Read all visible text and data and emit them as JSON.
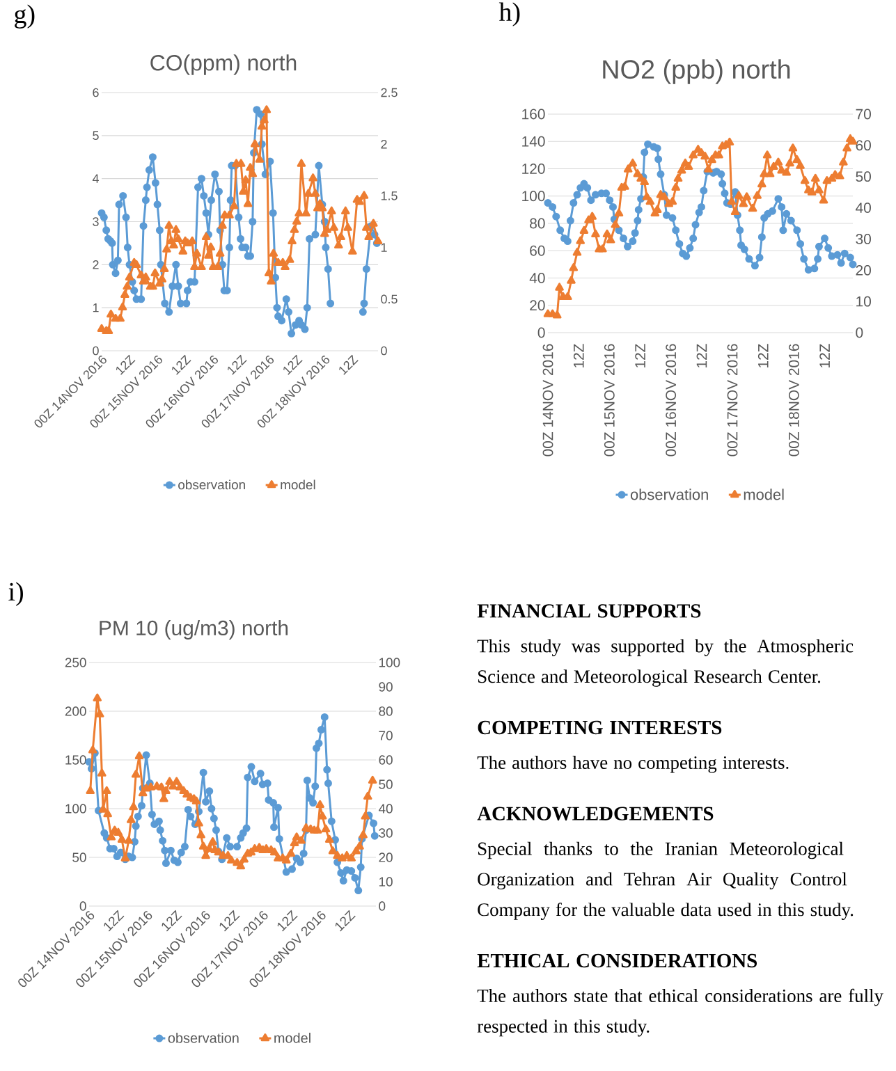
{
  "chart_data": [
    {
      "type": "line",
      "title": "CO(ppm) north",
      "annotations": [
        "g)"
      ],
      "xlim": [
        "2016-11-14T00:00",
        "2016-11-18T23:00"
      ],
      "xticks": [
        {
          "value": "2016-11-14T00:00",
          "label": "00Z 14NOV 2016"
        },
        {
          "value": "2016-11-14T12:00",
          "label": "12Z"
        },
        {
          "value": "2016-11-15T00:00",
          "label": "00Z 15NOV 2016"
        },
        {
          "value": "2016-11-15T12:00",
          "label": "12Z"
        },
        {
          "value": "2016-11-16T00:00",
          "label": "00Z 16NOV 2016"
        },
        {
          "value": "2016-11-16T12:00",
          "label": "12Z"
        },
        {
          "value": "2016-11-17T00:00",
          "label": "00Z 17NOV 2016"
        },
        {
          "value": "2016-11-17T12:00",
          "label": "12Z"
        },
        {
          "value": "2016-11-18T00:00",
          "label": "00Z 18NOV 2016"
        },
        {
          "value": "2016-11-18T12:00",
          "label": "12Z"
        }
      ],
      "ylim": [
        0,
        6
      ],
      "yticks": [
        0,
        1,
        2,
        3,
        4,
        5,
        6
      ],
      "y2lim": [
        0,
        2.5
      ],
      "y2ticks": [
        0,
        0.5,
        1,
        1.5,
        2,
        2.5
      ],
      "grid": "y",
      "legend": "bottom",
      "series": [
        {
          "name": "observation",
          "color": "#5b9bd5",
          "marker": "circle",
          "x": [
            "2016-11-14T00:00",
            "2016-11-14T01:00",
            "2016-11-14T02:00",
            "2016-11-14T02:48",
            "2016-11-14T03:48",
            "2016-11-14T04:30",
            "2016-11-14T04:48",
            "2016-11-14T06:00",
            "2016-11-14T07:00",
            "2016-11-14T07:30",
            "2016-11-14T09:12",
            "2016-11-14T10:30",
            "2016-11-14T11:12",
            "2016-11-14T12:00",
            "2016-11-14T13:12",
            "2016-11-14T14:00",
            "2016-11-14T15:00",
            "2016-11-14T17:00",
            "2016-11-14T18:00",
            "2016-11-14T19:00",
            "2016-11-14T19:30",
            "2016-11-14T20:30",
            "2016-11-14T22:00",
            "2016-11-14T23:12",
            "2016-11-15T00:00",
            "2016-11-15T01:00",
            "2016-11-15T01:30",
            "2016-11-15T03:12",
            "2016-11-15T05:00",
            "2016-11-15T06:30",
            "2016-11-15T08:00",
            "2016-11-15T09:00",
            "2016-11-15T10:00",
            "2016-11-15T12:30",
            "2016-11-15T13:00",
            "2016-11-15T14:12",
            "2016-11-15T16:00",
            "2016-11-15T17:30",
            "2016-11-15T19:00",
            "2016-11-15T20:00",
            "2016-11-15T21:00",
            "2016-11-15T22:00",
            "2016-11-15T23:12",
            "2016-11-16T00:48",
            "2016-11-16T02:30",
            "2016-11-16T03:00",
            "2016-11-16T04:00",
            "2016-11-16T04:48",
            "2016-11-16T06:00",
            "2016-11-16T07:00",
            "2016-11-16T07:30",
            "2016-11-16T08:00",
            "2016-11-16T09:30",
            "2016-11-16T11:00",
            "2016-11-16T11:48",
            "2016-11-16T12:30",
            "2016-11-16T14:00",
            "2016-11-16T15:00",
            "2016-11-16T16:00",
            "2016-11-16T17:00",
            "2016-11-16T17:30",
            "2016-11-16T18:48",
            "2016-11-16T20:30",
            "2016-11-16T21:00",
            "2016-11-16T22:30",
            "2016-11-17T00:30",
            "2016-11-17T01:48",
            "2016-11-17T02:48",
            "2016-11-17T03:30",
            "2016-11-17T04:00",
            "2016-11-17T05:30",
            "2016-11-17T07:30",
            "2016-11-17T08:30",
            "2016-11-17T09:42",
            "2016-11-17T11:30",
            "2016-11-17T13:00",
            "2016-11-17T14:00",
            "2016-11-17T15:30",
            "2016-11-17T16:30",
            "2016-11-17T17:30",
            "2016-11-17T20:00",
            "2016-11-17T21:30",
            "2016-11-17T23:00",
            "2016-11-18T00:00",
            "2016-11-18T00:30",
            "2016-11-18T01:30",
            "2016-11-18T02:30",
            "2016-11-18T10:00",
            "2016-11-18T16:30",
            "2016-11-18T17:00",
            "2016-11-18T18:00",
            "2016-11-18T20:00",
            "2016-11-18T21:30",
            "2016-11-18T22:30"
          ],
          "values": [
            3.2,
            3.1,
            2.8,
            2.6,
            2.55,
            2.5,
            2.0,
            1.8,
            2.1,
            3.4,
            3.6,
            3.1,
            2.4,
            2.0,
            1.6,
            1.4,
            1.2,
            1.2,
            2.9,
            3.5,
            3.8,
            4.2,
            4.5,
            3.9,
            3.4,
            2.8,
            2.0,
            1.1,
            0.9,
            1.5,
            2.0,
            1.5,
            1.1,
            1.1,
            1.4,
            1.6,
            1.6,
            3.8,
            4.0,
            3.6,
            3.2,
            2.7,
            3.5,
            4.1,
            3.7,
            2.8,
            2.0,
            1.4,
            1.4,
            2.4,
            3.5,
            4.3,
            4.3,
            3.1,
            2.6,
            2.4,
            2.4,
            2.2,
            2.2,
            3.0,
            4.6,
            5.6,
            5.5,
            4.8,
            4.1,
            4.4,
            3.2,
            1.7,
            1.0,
            0.8,
            0.7,
            1.2,
            0.9,
            0.4,
            0.6,
            0.7,
            0.6,
            0.5,
            1.0,
            2.6,
            2.7,
            4.3,
            3.4,
            3.0,
            2.4,
            1.9,
            1.1,
            null,
            0.9,
            1.1,
            1.9,
            2.9,
            2.7,
            2.5
          ]
        },
        {
          "name": "model",
          "color": "#ed7d31",
          "marker": "triangle",
          "axis": "y2",
          "x": [
            "2016-11-14T00:00",
            "2016-11-14T02:00",
            "2016-11-14T03:00",
            "2016-11-14T04:00",
            "2016-11-14T06:00",
            "2016-11-14T08:00",
            "2016-11-14T09:00",
            "2016-11-14T10:00",
            "2016-11-14T11:00",
            "2016-11-14T12:00",
            "2016-11-14T14:00",
            "2016-11-14T15:00",
            "2016-11-14T17:00",
            "2016-11-14T18:00",
            "2016-11-14T19:00",
            "2016-11-14T21:00",
            "2016-11-14T22:00",
            "2016-11-14T23:00",
            "2016-11-15T01:00",
            "2016-11-15T02:00",
            "2016-11-15T03:00",
            "2016-11-15T04:00",
            "2016-11-15T05:00",
            "2016-11-15T06:00",
            "2016-11-15T07:00",
            "2016-11-15T08:00",
            "2016-11-15T09:00",
            "2016-11-15T11:00",
            "2016-11-15T12:00",
            "2016-11-15T13:00",
            "2016-11-15T15:00",
            "2016-11-15T16:00",
            "2016-11-15T17:00",
            "2016-11-15T19:00",
            "2016-11-15T21:00",
            "2016-11-15T22:00",
            "2016-11-15T23:00",
            "2016-11-16T00:00",
            "2016-11-16T02:00",
            "2016-11-16T03:00",
            "2016-11-16T04:00",
            "2016-11-16T05:00",
            "2016-11-16T07:00",
            "2016-11-16T09:00",
            "2016-11-16T10:00",
            "2016-11-16T12:00",
            "2016-11-16T13:00",
            "2016-11-16T14:00",
            "2016-11-16T15:00",
            "2016-11-16T16:00",
            "2016-11-16T17:00",
            "2016-11-16T18:00",
            "2016-11-16T20:00",
            "2016-11-16T21:00",
            "2016-11-16T22:00",
            "2016-11-16T23:00",
            "2016-11-17T00:00",
            "2016-11-17T01:00",
            "2016-11-17T02:00",
            "2016-11-17T04:00",
            "2016-11-17T06:00",
            "2016-11-17T07:00",
            "2016-11-17T09:00",
            "2016-11-17T10:00",
            "2016-11-17T11:00",
            "2016-11-17T12:00",
            "2016-11-17T13:00",
            "2016-11-17T14:00",
            "2016-11-17T16:00",
            "2016-11-17T17:00",
            "2016-11-17T19:00",
            "2016-11-17T20:00",
            "2016-11-17T21:00",
            "2016-11-17T22:00",
            "2016-11-17T23:00",
            "2016-11-18T00:00",
            "2016-11-18T01:00",
            "2016-11-18T03:00",
            "2016-11-18T04:00",
            "2016-11-18T06:00",
            "2016-11-18T07:00",
            "2016-11-18T09:00",
            "2016-11-18T10:00",
            "2016-11-18T12:00",
            "2016-11-18T14:00",
            "2016-11-18T15:00",
            "2016-11-18T17:00",
            "2016-11-18T18:00",
            "2016-11-18T19:00",
            "2016-11-18T21:00",
            "2016-11-18T23:00"
          ],
          "values": [
            0.21,
            0.19,
            0.19,
            0.35,
            0.31,
            0.31,
            0.42,
            0.54,
            0.62,
            0.71,
            0.85,
            0.83,
            0.73,
            0.67,
            0.71,
            0.62,
            0.62,
            0.75,
            0.65,
            0.69,
            0.79,
            0.98,
            1.21,
            1.06,
            1.02,
            1.17,
            1.08,
            0.96,
            1.06,
            1.04,
            1.06,
            0.81,
            0.94,
            0.81,
            1.1,
            0.92,
            1.0,
            0.81,
            0.81,
            0.94,
            1.21,
            1.31,
            1.31,
            1.4,
            1.81,
            1.81,
            1.54,
            1.65,
            1.42,
            1.77,
            1.71,
            2.0,
            1.85,
            2.17,
            2.23,
            2.33,
            0.75,
            0.67,
            0.94,
            0.85,
            0.85,
            0.81,
            0.88,
            1.06,
            1.17,
            1.25,
            1.33,
            1.81,
            1.33,
            1.52,
            1.67,
            1.52,
            1.38,
            1.42,
            1.38,
            1.13,
            1.17,
            1.35,
            1.19,
            1.02,
            1.1,
            1.35,
            1.19,
            0.96,
            1.46,
            1.44,
            1.5,
            1.19,
            1.1,
            1.23,
            1.06
          ]
        }
      ]
    },
    {
      "type": "line",
      "title": "NO2 (ppb) north",
      "annotations": [
        "h)"
      ],
      "xlim": [
        "2016-11-14T00:00",
        "2016-11-18T23:00"
      ],
      "xticks": [
        {
          "value": "2016-11-14T00:00",
          "label": "00Z 14NOV 2016"
        },
        {
          "value": "2016-11-14T12:00",
          "label": "12Z"
        },
        {
          "value": "2016-11-15T00:00",
          "label": "00Z 15NOV 2016"
        },
        {
          "value": "2016-11-15T12:00",
          "label": "12Z"
        },
        {
          "value": "2016-11-16T00:00",
          "label": "00Z 16NOV 2016"
        },
        {
          "value": "2016-11-16T12:00",
          "label": "12Z"
        },
        {
          "value": "2016-11-17T00:00",
          "label": "00Z 17NOV 2016"
        },
        {
          "value": "2016-11-17T12:00",
          "label": "12Z"
        },
        {
          "value": "2016-11-18T00:00",
          "label": "00Z 18NOV 2016"
        },
        {
          "value": "2016-11-18T12:00",
          "label": "12Z"
        }
      ],
      "ylim": [
        0,
        160
      ],
      "yticks": [
        0,
        20,
        40,
        60,
        80,
        100,
        120,
        140,
        160
      ],
      "y2lim": [
        0,
        70
      ],
      "y2ticks": [
        0,
        10,
        20,
        30,
        40,
        50,
        60,
        70
      ],
      "grid": "y",
      "legend": "bottom",
      "series": [
        {
          "name": "observation",
          "color": "#5b9bd5",
          "marker": "circle",
          "x": [
            "2016-11-14T00:00",
            "2016-11-14T01:48",
            "2016-11-14T03:12",
            "2016-11-14T04:48",
            "2016-11-14T06:24",
            "2016-11-14T07:42",
            "2016-11-14T08:48",
            "2016-11-14T10:00",
            "2016-11-14T11:24",
            "2016-11-14T12:42",
            "2016-11-14T14:06",
            "2016-11-14T15:24",
            "2016-11-14T16:48",
            "2016-11-14T18:36",
            "2016-11-14T20:54",
            "2016-11-14T22:42",
            "2016-11-15T00:06",
            "2016-11-15T01:24",
            "2016-11-15T01:54",
            "2016-11-15T03:42",
            "2016-11-15T05:30",
            "2016-11-15T07:06",
            "2016-11-15T09:06",
            "2016-11-15T10:00",
            "2016-11-15T11:00",
            "2016-11-15T11:24",
            "2016-11-15T12:18",
            "2016-11-15T13:12",
            "2016-11-15T13:42",
            "2016-11-15T15:00",
            "2016-11-15T17:18",
            "2016-11-15T18:42",
            "2016-11-15T19:06",
            "2016-11-15T20:00",
            "2016-11-15T21:24",
            "2016-11-15T22:18",
            "2016-11-16T00:36",
            "2016-11-16T01:54",
            "2016-11-16T03:18",
            "2016-11-16T04:36",
            "2016-11-16T06:00",
            "2016-11-16T07:24",
            "2016-11-16T08:42",
            "2016-11-16T09:36",
            "2016-11-16T11:00",
            "2016-11-16T11:54",
            "2016-11-16T12:48",
            "2016-11-16T14:12",
            "2016-11-16T16:30",
            "2016-11-16T17:48",
            "2016-11-16T19:36",
            "2016-11-16T20:06",
            "2016-11-16T21:00",
            "2016-11-16T21:54",
            "2016-11-16T23:18",
            "2016-11-17T01:06",
            "2016-11-17T02:00",
            "2016-11-17T02:54",
            "2016-11-17T03:24",
            "2016-11-17T04:42",
            "2016-11-17T06:30",
            "2016-11-17T08:48",
            "2016-11-17T10:36",
            "2016-11-17T11:30",
            "2016-11-17T12:24",
            "2016-11-17T13:48",
            "2016-11-17T15:36",
            "2016-11-17T17:54",
            "2016-11-17T19:12",
            "2016-11-17T19:48",
            "2016-11-17T21:06",
            "2016-11-17T22:54",
            "2016-11-18T01:12",
            "2016-11-18T02:30",
            "2016-11-18T03:54",
            "2016-11-18T05:42",
            "2016-11-18T08:00",
            "2016-11-18T09:18",
            "2016-11-18T09:48",
            "2016-11-18T12:00",
            "2016-11-18T13:24",
            "2016-11-18T14:48",
            "2016-11-18T17:00",
            "2016-11-18T18:24",
            "2016-11-18T19:48",
            "2016-11-18T22:00",
            "2016-11-18T23:00"
          ],
          "values": [
            95,
            92,
            85,
            75,
            69,
            67,
            82,
            95,
            101,
            106,
            109,
            106,
            97,
            101,
            102,
            102,
            97,
            92,
            83,
            75,
            69,
            63,
            67,
            73,
            82,
            90,
            98,
            114,
            132,
            138,
            136,
            135,
            127,
            116,
            101,
            86,
            84,
            75,
            65,
            58,
            56,
            62,
            69,
            79,
            88,
            92,
            104,
            118,
            117,
            118,
            116,
            109,
            102,
            95,
            94,
            103,
            86,
            75,
            64,
            61,
            54,
            49,
            55,
            70,
            84,
            87,
            89,
            98,
            92,
            75,
            87,
            82,
            75,
            65,
            54,
            46,
            47,
            54,
            63,
            69,
            62,
            56,
            57,
            51,
            58,
            55,
            50
          ]
        },
        {
          "name": "model",
          "color": "#ed7d31",
          "marker": "triangle",
          "axis": "y2",
          "x": [
            "2016-11-14T00:00",
            "2016-11-14T01:48",
            "2016-11-14T03:36",
            "2016-11-14T04:30",
            "2016-11-14T05:54",
            "2016-11-14T07:42",
            "2016-11-14T09:06",
            "2016-11-14T10:00",
            "2016-11-14T11:24",
            "2016-11-14T12:42",
            "2016-11-14T14:06",
            "2016-11-14T15:54",
            "2016-11-14T17:18",
            "2016-11-14T18:36",
            "2016-11-14T20:00",
            "2016-11-14T21:18",
            "2016-11-14T23:06",
            "2016-11-15T00:30",
            "2016-11-15T02:18",
            "2016-11-15T03:42",
            "2016-11-15T04:48",
            "2016-11-15T06:00",
            "2016-11-15T07:18",
            "2016-11-15T09:06",
            "2016-11-15T11:00",
            "2016-11-15T12:18",
            "2016-11-15T13:42",
            "2016-11-15T14:36",
            "2016-11-15T15:54",
            "2016-11-15T17:48",
            "2016-11-15T18:42",
            "2016-11-15T20:00",
            "2016-11-15T21:24",
            "2016-11-15T23:12",
            "2016-11-16T00:36",
            "2016-11-16T01:54",
            "2016-11-16T02:48",
            "2016-11-16T04:12",
            "2016-11-16T05:36",
            "2016-11-16T06:54",
            "2016-11-16T08:42",
            "2016-11-16T10:36",
            "2016-11-16T11:54",
            "2016-11-16T13:18",
            "2016-11-16T14:36",
            "2016-11-16T16:00",
            "2016-11-16T17:24",
            "2016-11-16T18:42",
            "2016-11-16T20:06",
            "2016-11-16T21:30",
            "2016-11-16T22:54",
            "2016-11-16T23:42",
            "2016-11-17T01:06",
            "2016-11-17T02:30",
            "2016-11-17T04:18",
            "2016-11-17T05:36",
            "2016-11-17T07:54",
            "2016-11-17T09:42",
            "2016-11-17T11:30",
            "2016-11-17T12:24",
            "2016-11-17T13:36",
            "2016-11-17T14:42",
            "2016-11-17T16:06",
            "2016-11-17T17:54",
            "2016-11-17T19:12",
            "2016-11-17T21:06",
            "2016-11-17T22:24",
            "2016-11-17T23:36",
            "2016-11-18T01:12",
            "2016-11-18T02:30",
            "2016-11-18T04:18",
            "2016-11-18T05:42",
            "2016-11-18T07:00",
            "2016-11-18T08:24",
            "2016-11-18T09:48",
            "2016-11-18T11:36",
            "2016-11-18T12:54",
            "2016-11-18T14:48",
            "2016-11-18T16:06",
            "2016-11-18T17:54",
            "2016-11-18T19:18",
            "2016-11-18T20:42",
            "2016-11-18T22:00",
            "2016-11-18T23:00"
          ],
          "values": [
            5.9,
            5.9,
            5.5,
            14.4,
            11.4,
            11.4,
            16.6,
            20.7,
            25.6,
            29.3,
            32.6,
            36.0,
            37.1,
            31.5,
            26.7,
            26.7,
            31.5,
            29.6,
            34.5,
            38.2,
            46.4,
            46.7,
            52.3,
            54.2,
            50.8,
            49.3,
            48.2,
            43.4,
            41.9,
            38.2,
            39.3,
            44.1,
            43.4,
            41.2,
            41.9,
            46.4,
            49.3,
            51.9,
            54.2,
            53.1,
            56.8,
            58.6,
            57.5,
            56.4,
            52.3,
            55.3,
            56.8,
            56.8,
            59.7,
            60.1,
            60.9,
            41.9,
            38.6,
            43.8,
            41.2,
            43.4,
            39.7,
            43.8,
            47.5,
            50.8,
            56.8,
            50.8,
            53.1,
            54.5,
            51.9,
            51.2,
            54.2,
            59.0,
            55.3,
            53.4,
            48.6,
            45.6,
            44.9,
            49.3,
            45.6,
            42.3,
            48.6,
            49.3,
            50.5,
            50.1,
            54.5,
            59.0,
            62.0,
            61.2
          ]
        }
      ]
    },
    {
      "type": "line",
      "title": "PM 10 (ug/m3) north",
      "annotations": [
        "i)"
      ],
      "xlim": [
        "2016-11-14T00:00",
        "2016-11-18T23:00"
      ],
      "xticks": [
        {
          "value": "2016-11-14T00:00",
          "label": "00Z 14NOV 2016"
        },
        {
          "value": "2016-11-14T12:00",
          "label": "12Z"
        },
        {
          "value": "2016-11-15T00:00",
          "label": "00Z 15NOV 2016"
        },
        {
          "value": "2016-11-15T12:00",
          "label": "12Z"
        },
        {
          "value": "2016-11-16T00:00",
          "label": "00Z 16NOV 2016"
        },
        {
          "value": "2016-11-16T12:00",
          "label": "12Z"
        },
        {
          "value": "2016-11-17T00:00",
          "label": "00Z 17NOV 2016"
        },
        {
          "value": "2016-11-17T12:00",
          "label": "12Z"
        },
        {
          "value": "2016-11-18T00:00",
          "label": "00Z 18NOV 2016"
        },
        {
          "value": "2016-11-18T12:00",
          "label": "12Z"
        }
      ],
      "ylim": [
        0,
        250
      ],
      "yticks": [
        0,
        50,
        100,
        150,
        200,
        250
      ],
      "y2lim": [
        0,
        100
      ],
      "y2ticks": [
        0,
        10,
        20,
        30,
        40,
        50,
        60,
        70,
        80,
        90,
        100
      ],
      "grid": "y",
      "legend": "bottom",
      "series": [
        {
          "name": "observation",
          "color": "#5b9bd5",
          "marker": "circle",
          "x": [
            "2016-11-14T00:00",
            "2016-11-14T01:00",
            "2016-11-14T02:24",
            "2016-11-14T03:54",
            "2016-11-14T06:18",
            "2016-11-14T07:18",
            "2016-11-14T08:42",
            "2016-11-14T10:12",
            "2016-11-14T11:36",
            "2016-11-14T13:06",
            "2016-11-14T15:00",
            "2016-11-14T16:24",
            "2016-11-14T17:54",
            "2016-11-14T18:54",
            "2016-11-14T19:24",
            "2016-11-14T20:18",
            "2016-11-14T21:48",
            "2016-11-14T22:18",
            "2016-11-14T23:42",
            "2016-11-15T01:12",
            "2016-11-15T02:06",
            "2016-11-15T03:06",
            "2016-11-15T05:00",
            "2016-11-15T05:30",
            "2016-11-15T06:30",
            "2016-11-15T07:24",
            "2016-11-15T07:54",
            "2016-11-15T09:54",
            "2016-11-15T11:18",
            "2016-11-15T12:48",
            "2016-11-15T14:12",
            "2016-11-15T15:42",
            "2016-11-15T17:06",
            "2016-11-15T18:06",
            "2016-11-15T20:00",
            "2016-11-15T21:30",
            "2016-11-15T23:24",
            "2016-11-16T00:24",
            "2016-11-16T01:54",
            "2016-11-16T02:48",
            "2016-11-16T03:48",
            "2016-11-16T04:42",
            "2016-11-16T05:42",
            "2016-11-16T07:06",
            "2016-11-16T09:06",
            "2016-11-16T10:30",
            "2016-11-16T13:24",
            "2016-11-16T14:54",
            "2016-11-16T15:54",
            "2016-11-16T17:18",
            "2016-11-16T17:48",
            "2016-11-16T19:18",
            "2016-11-16T20:42",
            "2016-11-16T23:06",
            "2016-11-17T00:00",
            "2016-11-17T02:00",
            "2016-11-17T02:30",
            "2016-11-17T04:24",
            "2016-11-17T04:42",
            "2016-11-17T06:24",
            "2016-11-17T06:54",
            "2016-11-17T09:48",
            "2016-11-17T12:12",
            "2016-11-17T14:06",
            "2016-11-17T15:36",
            "2016-11-17T17:00",
            "2016-11-17T18:00",
            "2016-11-17T18:30",
            "2016-11-17T19:30",
            "2016-11-17T20:54",
            "2016-11-17T21:48",
            "2016-11-17T22:18",
            "2016-11-17T23:18",
            "2016-11-18T00:18",
            "2016-11-18T01:42",
            "2016-11-18T02:42",
            "2016-11-18T03:12",
            "2016-11-18T04:36",
            "2016-11-18T06:06",
            "2016-11-18T07:00",
            "2016-11-18T08:30",
            "2016-11-18T09:30",
            "2016-11-18T10:54",
            "2016-11-18T12:48",
            "2016-11-18T14:18",
            "2016-11-18T15:42",
            "2016-11-18T16:42",
            "2016-11-18T17:12",
            "2016-11-18T20:06",
            "2016-11-18T22:00",
            "2016-11-18T22:30"
          ],
          "values": [
            148,
            141,
            157,
            98,
            75,
            70,
            59,
            59,
            51,
            55,
            48,
            51,
            50,
            66,
            82,
            92,
            103,
            121,
            155,
            126,
            94,
            84,
            87,
            78,
            67,
            57,
            44,
            57,
            47,
            45,
            55,
            61,
            99,
            92,
            84,
            97,
            137,
            107,
            118,
            100,
            90,
            78,
            56,
            48,
            70,
            61,
            61,
            70,
            75,
            80,
            132,
            143,
            128,
            136,
            125,
            126,
            109,
            106,
            81,
            101,
            69,
            35,
            38,
            49,
            45,
            54,
            78,
            129,
            111,
            106,
            123,
            162,
            167,
            181,
            194,
            140,
            126,
            87,
            68,
            45,
            34,
            26,
            37,
            36,
            29,
            16,
            40,
            69,
            93,
            85,
            72
          ]
        },
        {
          "name": "model",
          "color": "#ed7d31",
          "marker": "triangle",
          "axis": "y2",
          "x": [
            "2016-11-14T00:30",
            "2016-11-14T01:30",
            "2016-11-14T03:24",
            "2016-11-14T04:24",
            "2016-11-14T05:18",
            "2016-11-14T05:48",
            "2016-11-14T07:18",
            "2016-11-14T07:42",
            "2016-11-14T09:12",
            "2016-11-14T10:36",
            "2016-11-14T12:06",
            "2016-11-14T13:36",
            "2016-11-14T15:00",
            "2016-11-14T16:24",
            "2016-11-14T17:24",
            "2016-11-14T18:24",
            "2016-11-14T19:24",
            "2016-11-14T20:48",
            "2016-11-14T22:18",
            "2016-11-14T23:42",
            "2016-11-15T01:36",
            "2016-11-15T04:06",
            "2016-11-15T06:00",
            "2016-11-15T07:00",
            "2016-11-15T07:54",
            "2016-11-15T09:24",
            "2016-11-15T10:48",
            "2016-11-15T12:18",
            "2016-11-15T13:42",
            "2016-11-15T15:12",
            "2016-11-15T16:36",
            "2016-11-15T18:06",
            "2016-11-15T19:30",
            "2016-11-15T20:30",
            "2016-11-15T21:30",
            "2016-11-15T22:24",
            "2016-11-15T23:24",
            "2016-11-16T00:24",
            "2016-11-16T01:48",
            "2016-11-16T03:18",
            "2016-11-16T04:12",
            "2016-11-16T05:42",
            "2016-11-16T07:36",
            "2016-11-16T09:36",
            "2016-11-16T11:00",
            "2016-11-16T13:24",
            "2016-11-16T14:54",
            "2016-11-16T16:18",
            "2016-11-16T17:48",
            "2016-11-16T19:12",
            "2016-11-16T20:42",
            "2016-11-16T22:36",
            "2016-11-17T00:06",
            "2016-11-17T01:30",
            "2016-11-17T03:30",
            "2016-11-17T04:54",
            "2016-11-17T06:24",
            "2016-11-17T08:18",
            "2016-11-17T09:48",
            "2016-11-17T11:42",
            "2016-11-17T13:12",
            "2016-11-17T14:06",
            "2016-11-17T16:00",
            "2016-11-17T18:00",
            "2016-11-17T19:54",
            "2016-11-17T21:24",
            "2016-11-17T22:48",
            "2016-11-17T23:48",
            "2016-11-18T00:48",
            "2016-11-18T02:12",
            "2016-11-18T03:42",
            "2016-11-18T05:06",
            "2016-11-18T07:00",
            "2016-11-18T09:00",
            "2016-11-18T10:54",
            "2016-11-18T12:48",
            "2016-11-18T14:48",
            "2016-11-18T16:12",
            "2016-11-18T17:42",
            "2016-11-18T18:36",
            "2016-11-18T19:36",
            "2016-11-18T21:36"
          ],
          "values": [
            47.2,
            63.9,
            85.3,
            78.7,
            54.4,
            39.6,
            47.2,
            37.7,
            28.2,
            31.0,
            30.1,
            27.2,
            19.6,
            26.8,
            35.3,
            40.6,
            53.9,
            61.5,
            46.3,
            48.2,
            48.7,
            49.1,
            48.7,
            43.9,
            47.2,
            51.0,
            49.1,
            51.0,
            48.7,
            47.2,
            45.8,
            44.4,
            43.9,
            43.0,
            33.9,
            29.1,
            24.4,
            20.6,
            23.4,
            26.3,
            22.9,
            22.0,
            20.6,
            20.6,
            18.7,
            17.7,
            16.3,
            19.1,
            21.5,
            22.0,
            23.4,
            23.9,
            22.9,
            23.4,
            22.9,
            22.0,
            19.6,
            19.6,
            18.7,
            21.5,
            25.8,
            28.2,
            26.8,
            32.0,
            31.5,
            31.0,
            31.0,
            41.5,
            36.8,
            31.5,
            27.2,
            22.5,
            20.6,
            19.6,
            20.6,
            19.6,
            22.5,
            24.4,
            29.1,
            36.8,
            44.9,
            51.5
          ]
        }
      ]
    },
    {
      "type": "other",
      "annotations": [
        "FINANCIAL SUPPORTS",
        "This study was supported by the Atmospheric Science and Meteorological Research Center.",
        "COMPETING INTERESTS",
        "The authors have no competing interests.",
        "ACKNOWLEDGEMENTS",
        "Special thanks to the Iranian Meteorological Organization and Tehran Air Quality Control Company for the valuable data used in this study.",
        "ETHICAL CONSIDERATIONS",
        "The authors state that ethical considerations are fully respected in this study."
      ]
    }
  ]
}
